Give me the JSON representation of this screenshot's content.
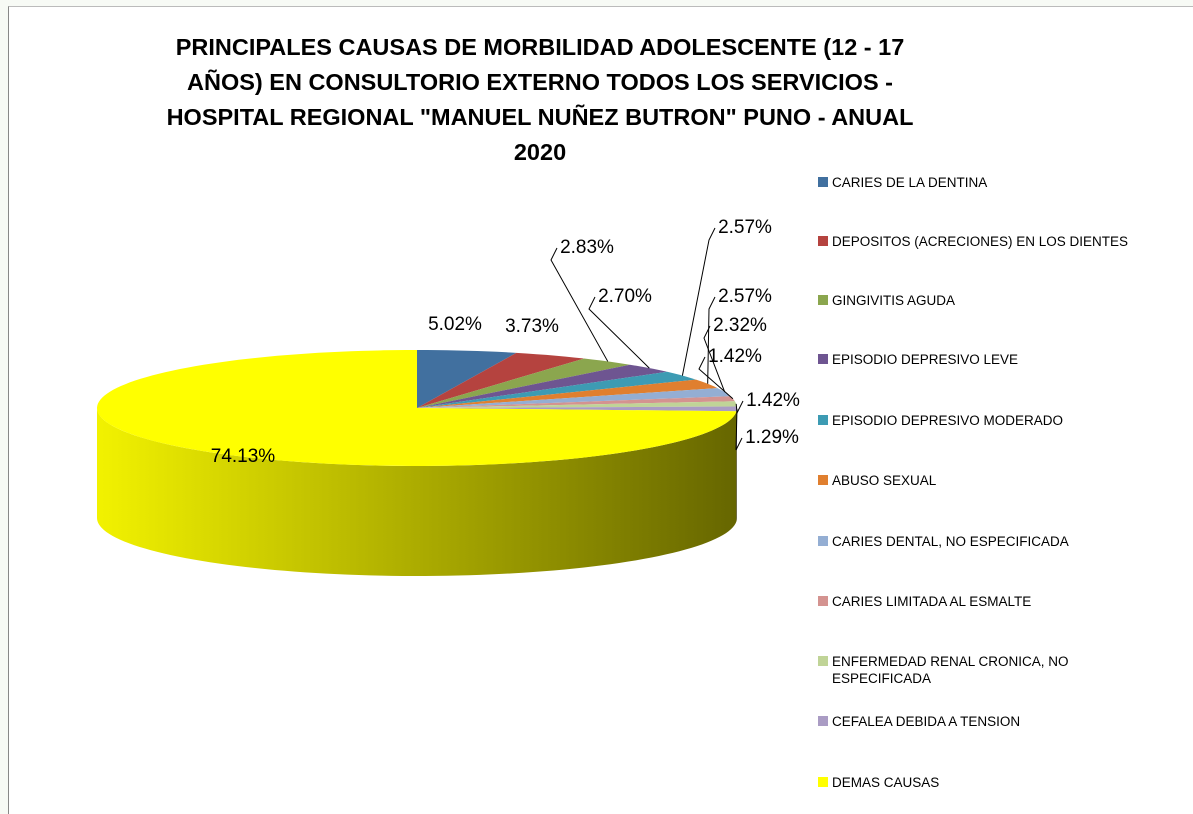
{
  "chart_data": {
    "type": "pie3d",
    "title": "PRINCIPALES CAUSAS DE MORBILIDAD ADOLESCENTE (12 - 17 AÑOS) EN CONSULTORIO EXTERNO TODOS LOS SERVICIOS - HOSPITAL REGIONAL \"MANUEL NUÑEZ BUTRON\" PUNO - ANUAL 2020",
    "categories": [
      "CARIES DE LA DENTINA",
      "DEPOSITOS (ACRECIONES) EN LOS DIENTES",
      "GINGIVITIS AGUDA",
      "EPISODIO DEPRESIVO LEVE",
      "EPISODIO DEPRESIVO MODERADO",
      "ABUSO SEXUAL",
      "CARIES DENTAL, NO ESPECIFICADA",
      "CARIES LIMITADA AL ESMALTE",
      "ENFERMEDAD RENAL CRONICA, NO ESPECIFICADA",
      "CEFALEA DEBIDA A TENSION",
      "DEMAS CAUSAS"
    ],
    "values": [
      5.02,
      3.73,
      2.83,
      2.7,
      2.57,
      2.57,
      2.32,
      1.42,
      1.42,
      1.29,
      74.13
    ],
    "value_labels": [
      "5.02%",
      "3.73%",
      "2.83%",
      "2.70%",
      "2.57%",
      "2.57%",
      "2.32%",
      "1.42%",
      "1.42%",
      "1.29%",
      "74.13%"
    ],
    "colors": [
      "#41709f",
      "#b5433f",
      "#8ba64e",
      "#6e5591",
      "#3d9bb3",
      "#e07f2f",
      "#94aed3",
      "#d49390",
      "#c0d497",
      "#aa9cc4",
      "#ffff00"
    ],
    "legend": "right"
  }
}
